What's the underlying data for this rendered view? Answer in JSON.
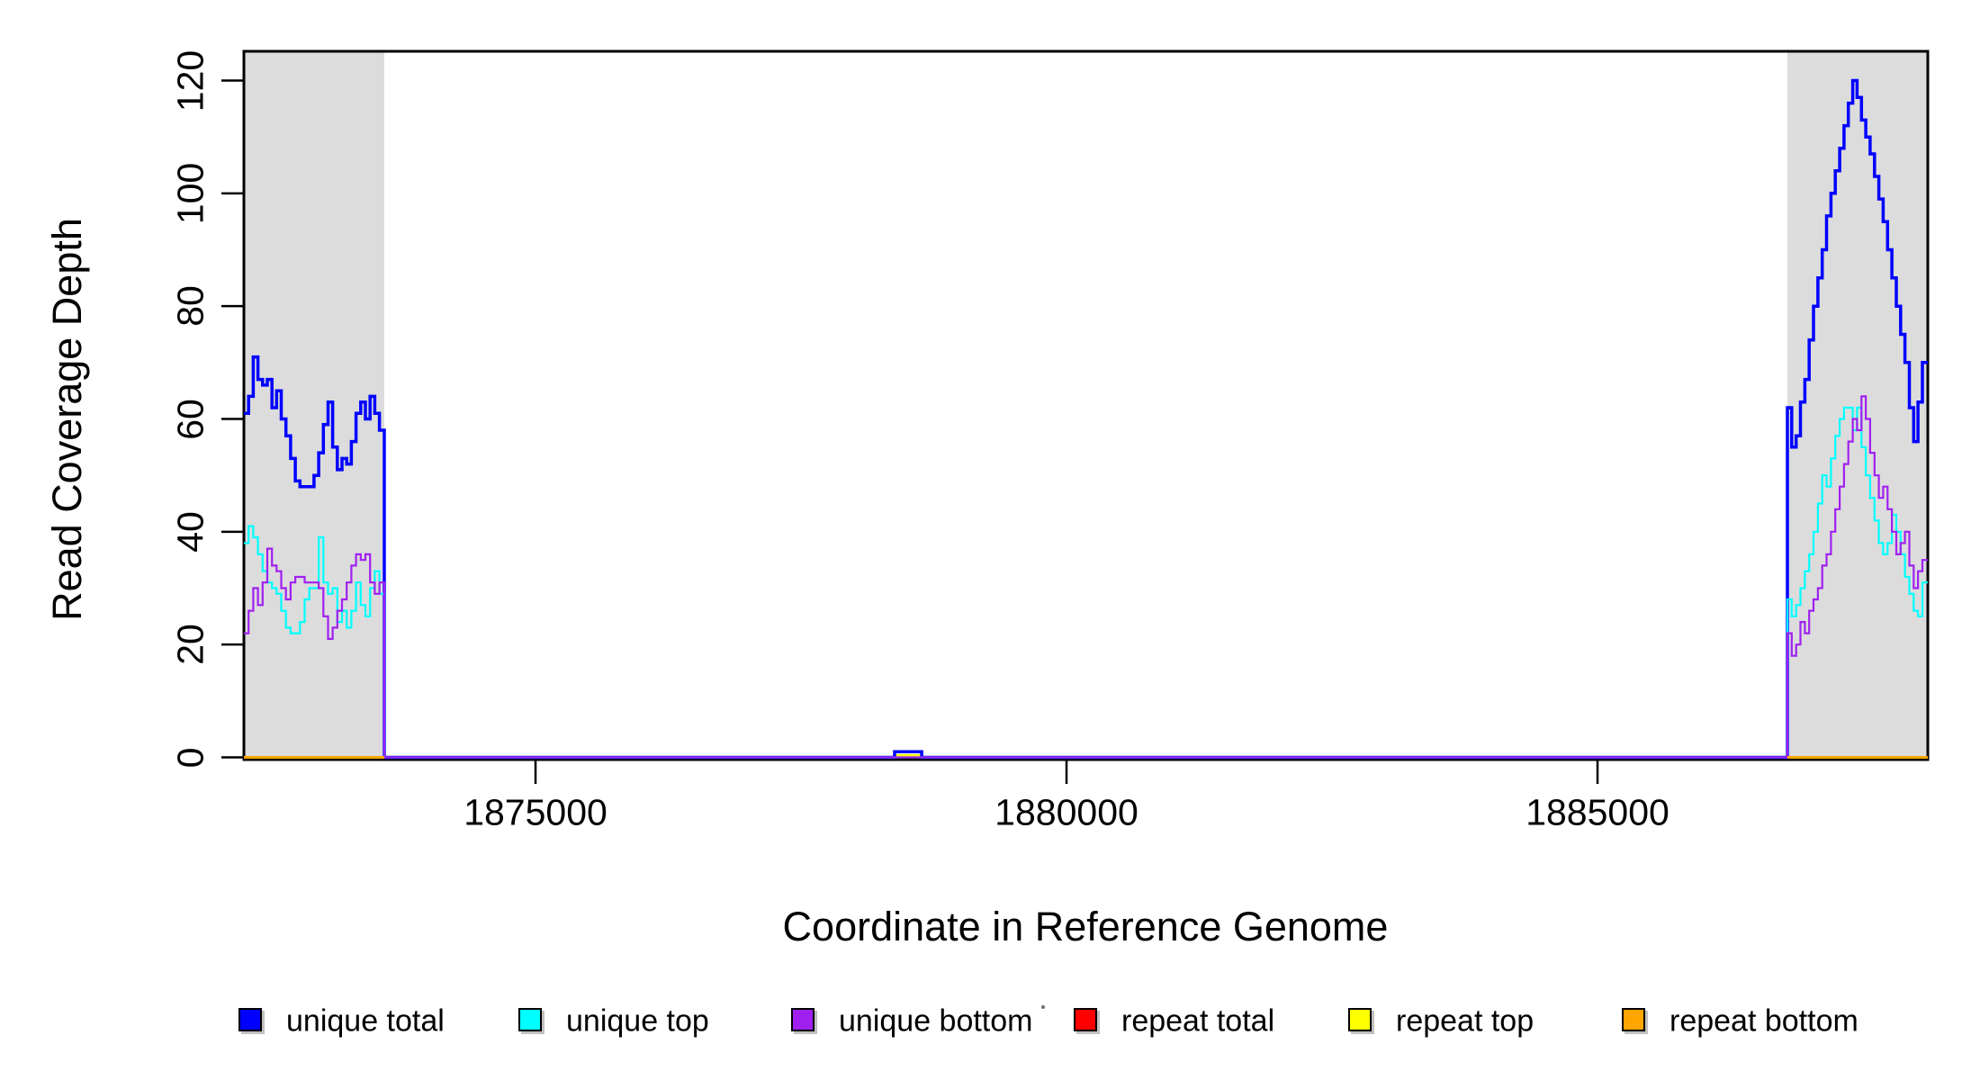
{
  "figure": {
    "background": "#FFFFFF",
    "text_color": "#000000"
  },
  "chart_data": {
    "type": "line",
    "plot_style": "step",
    "title": "",
    "xlabel": "Coordinate in Reference Genome",
    "ylabel": "Read Coverage Depth",
    "xlim": [
      1872254,
      1888110
    ],
    "ylim": [
      0,
      125.3
    ],
    "xticks": [
      1875000,
      1880000,
      1885000
    ],
    "yticks": [
      0,
      20,
      40,
      60,
      80,
      100,
      120
    ],
    "grid": false,
    "legend_position": "bottom",
    "shaded_regions": [
      {
        "x0": 1872254,
        "x1": 1873576,
        "color": "#DCDCDC"
      },
      {
        "x0": 1886788,
        "x1": 1888110,
        "color": "#DCDCDC"
      }
    ],
    "series": [
      {
        "name": "unique total",
        "color": "#0000FF",
        "line_width": 3.5,
        "draw_order": 2,
        "segments": [
          [
            {
              "start": 1872254,
              "step": 44,
              "values": [
                61,
                64,
                71,
                67,
                66,
                67,
                62,
                65,
                60,
                57,
                53,
                49,
                48,
                48,
                48,
                50,
                54,
                59,
                63,
                55,
                51,
                53,
                52,
                56,
                61,
                63,
                60,
                64,
                61,
                58
              ]
            },
            {
              "points": [
                [
                  1873576,
                  0
                ],
                [
                  1878381,
                  1
                ],
                [
                  1878636,
                  0
                ]
              ]
            },
            {
              "start": 1886788,
              "step": 41,
              "values": [
                62,
                55,
                57,
                63,
                67,
                74,
                80,
                85,
                90,
                96,
                100,
                104,
                108,
                112,
                116,
                120,
                117,
                113,
                110,
                107,
                103,
                99,
                95,
                90,
                85,
                80,
                75,
                70,
                62,
                56,
                63,
                70
              ]
            },
            {
              "points": [
                [
                  1888110,
                  70
                ]
              ]
            }
          ]
        ]
      },
      {
        "name": "unique top",
        "color": "#00FFFF",
        "line_width": 2.2,
        "draw_order": 3,
        "segments": [
          [
            {
              "start": 1872254,
              "step": 44,
              "values": [
                38,
                41,
                39,
                36,
                33,
                31,
                30,
                29,
                26,
                23,
                22,
                22,
                24,
                28,
                30,
                30,
                39,
                31,
                29,
                30,
                24,
                26,
                23,
                26,
                31,
                27,
                25,
                30,
                33,
                29
              ]
            },
            {
              "points": [
                [
                  1873576,
                  0
                ]
              ]
            },
            {
              "start": 1886788,
              "step": 41,
              "values": [
                28,
                25,
                27,
                30,
                33,
                36,
                40,
                45,
                50,
                48,
                53,
                57,
                60,
                62,
                62,
                58,
                62,
                55,
                50,
                46,
                42,
                38,
                36,
                38,
                43,
                40,
                36,
                32,
                29,
                26,
                25,
                31
              ]
            },
            {
              "points": [
                [
                  1888110,
                  31
                ]
              ]
            }
          ]
        ]
      },
      {
        "name": "unique bottom",
        "color": "#A020F0",
        "line_width": 2.2,
        "draw_order": 4,
        "segments": [
          [
            {
              "start": 1872254,
              "step": 44,
              "values": [
                22,
                26,
                30,
                27,
                31,
                37,
                34,
                33,
                30,
                28,
                31,
                32,
                32,
                31,
                31,
                31,
                30,
                25,
                21,
                23,
                26,
                28,
                31,
                34,
                36,
                35,
                36,
                31,
                29,
                31
              ]
            },
            {
              "points": [
                [
                  1873576,
                  0
                ]
              ]
            },
            {
              "start": 1886788,
              "step": 41,
              "values": [
                22,
                18,
                20,
                24,
                22,
                26,
                28,
                30,
                34,
                36,
                40,
                44,
                48,
                52,
                56,
                60,
                58,
                64,
                60,
                54,
                50,
                46,
                48,
                44,
                40,
                36,
                38,
                40,
                34,
                30,
                33,
                35
              ]
            },
            {
              "points": [
                [
                  1888110,
                  35
                ]
              ]
            }
          ]
        ]
      },
      {
        "name": "repeat total",
        "color": "#FF0000",
        "line_width": 2,
        "draw_order": 0,
        "segments": [
          [
            {
              "points": [
                [
                  1872254,
                  0
                ],
                [
                  1873576,
                  0
                ]
              ]
            }
          ],
          [
            {
              "points": [
                [
                  1886788,
                  0
                ],
                [
                  1888110,
                  0
                ]
              ]
            }
          ]
        ]
      },
      {
        "name": "repeat top",
        "color": "#FFFF00",
        "line_width": 2.5,
        "draw_order": 1,
        "segments": [
          [
            {
              "points": [
                [
                  1872254,
                  0
                ],
                [
                  1878381,
                  0.35
                ],
                [
                  1878636,
                  0
                ],
                [
                  1888110,
                  0
                ]
              ]
            }
          ]
        ]
      },
      {
        "name": "repeat bottom",
        "color": "#FFA500",
        "line_width": 3,
        "draw_order": 5,
        "segments": [
          [
            {
              "points": [
                [
                  1872254,
                  0
                ],
                [
                  1873576,
                  0
                ]
              ]
            }
          ],
          [
            {
              "points": [
                [
                  1886788,
                  0
                ],
                [
                  1888110,
                  0
                ]
              ]
            }
          ]
        ]
      }
    ]
  },
  "legend": {
    "items": [
      {
        "label": "unique total",
        "color": "#0000FF"
      },
      {
        "label": "unique top",
        "color": "#00FFFF"
      },
      {
        "label": "unique bottom",
        "color": "#A020F0"
      },
      {
        "label": "repeat total",
        "color": "#FF0000"
      },
      {
        "label": "repeat top",
        "color": "#FFFF00"
      },
      {
        "label": "repeat bottom",
        "color": "#FFA500"
      }
    ]
  },
  "annotations": {
    "stray_mark": {
      "present": true
    }
  }
}
